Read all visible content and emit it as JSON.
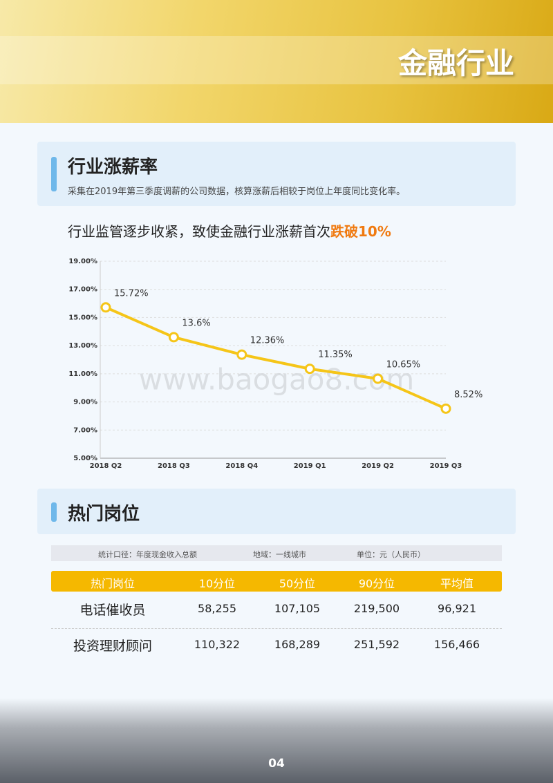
{
  "header": {
    "title": "金融行业"
  },
  "section1": {
    "title": "行业涨薪率",
    "description": "采集在2019年第三季度调薪的公司数据，核算涨薪后相较于岗位上年度同比变化率。",
    "headline": "行业监管逐步收紧，致使金融行业涨薪首次",
    "headline_highlight": "跌破10%"
  },
  "chart_data": {
    "type": "line",
    "categories": [
      "2018 Q2",
      "2018 Q3",
      "2018 Q4",
      "2019 Q1",
      "2019 Q2",
      "2019 Q3"
    ],
    "values": [
      15.72,
      13.6,
      12.36,
      11.35,
      10.65,
      8.52
    ],
    "value_labels": [
      "15.72%",
      "13.6%",
      "12.36%",
      "11.35%",
      "10.65%",
      "8.52%"
    ],
    "color": "#f5c518",
    "ylim": [
      5,
      19
    ],
    "yticks": [
      {
        "value": 5,
        "label": "5.00%"
      },
      {
        "value": 7,
        "label": "7.00%"
      },
      {
        "value": 9,
        "label": "9.00%"
      },
      {
        "value": 11,
        "label": "11.00%"
      },
      {
        "value": 13,
        "label": "13.00%"
      },
      {
        "value": 15,
        "label": "15.00%"
      },
      {
        "value": 17,
        "label": "17.00%"
      },
      {
        "value": 19,
        "label": "19.00%"
      }
    ],
    "grid": true,
    "watermark": "www.baogao8.com"
  },
  "section2": {
    "title": "热门岗位",
    "filters": [
      "统计口径：年度现金收入总额",
      "地域：一线城市",
      "单位：元（人民币）"
    ],
    "table": {
      "header": [
        "热门岗位",
        "10分位",
        "50分位",
        "90分位",
        "平均值"
      ],
      "rows": [
        [
          "电话催收员",
          "58,255",
          "107,105",
          "219,500",
          "96,921"
        ],
        [
          "投资理财顾问",
          "110,322",
          "168,289",
          "251,592",
          "156,466"
        ]
      ]
    }
  },
  "footer": {
    "page": "04"
  }
}
